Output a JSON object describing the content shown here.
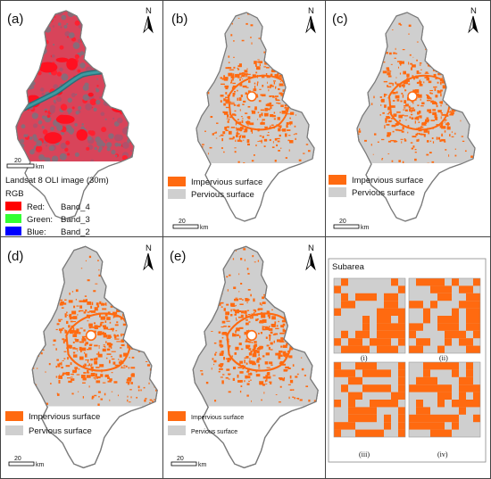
{
  "panels": [
    {
      "id": "a",
      "label": "(a)"
    },
    {
      "id": "b",
      "label": "(b)"
    },
    {
      "id": "c",
      "label": "(c)"
    },
    {
      "id": "d",
      "label": "(d)"
    },
    {
      "id": "e",
      "label": "(e)"
    },
    {
      "id": "f",
      "label": ""
    }
  ],
  "north_label": "N",
  "scalebar": {
    "value": "20",
    "unit": "km"
  },
  "panel_a": {
    "title": "Landsat 8 OLI image (30m)",
    "rgb_heading": "RGB",
    "bands": [
      {
        "channel": "Red:",
        "band": "Band_4",
        "color": "#ff0000"
      },
      {
        "channel": "Green:",
        "band": "Band_3",
        "color": "#33ff33"
      },
      {
        "channel": "Blue:",
        "band": "Band_2",
        "color": "#0000ff"
      }
    ]
  },
  "legend": {
    "impervious": "Impervious surface",
    "pervious": "Pervious surface",
    "impervious_color": "#ff6a10",
    "pervious_color": "#cfcfcf"
  },
  "subarea": {
    "title": "Subarea",
    "labels": [
      "(i)",
      "(ii)",
      "(iii)",
      "(iv)"
    ]
  }
}
